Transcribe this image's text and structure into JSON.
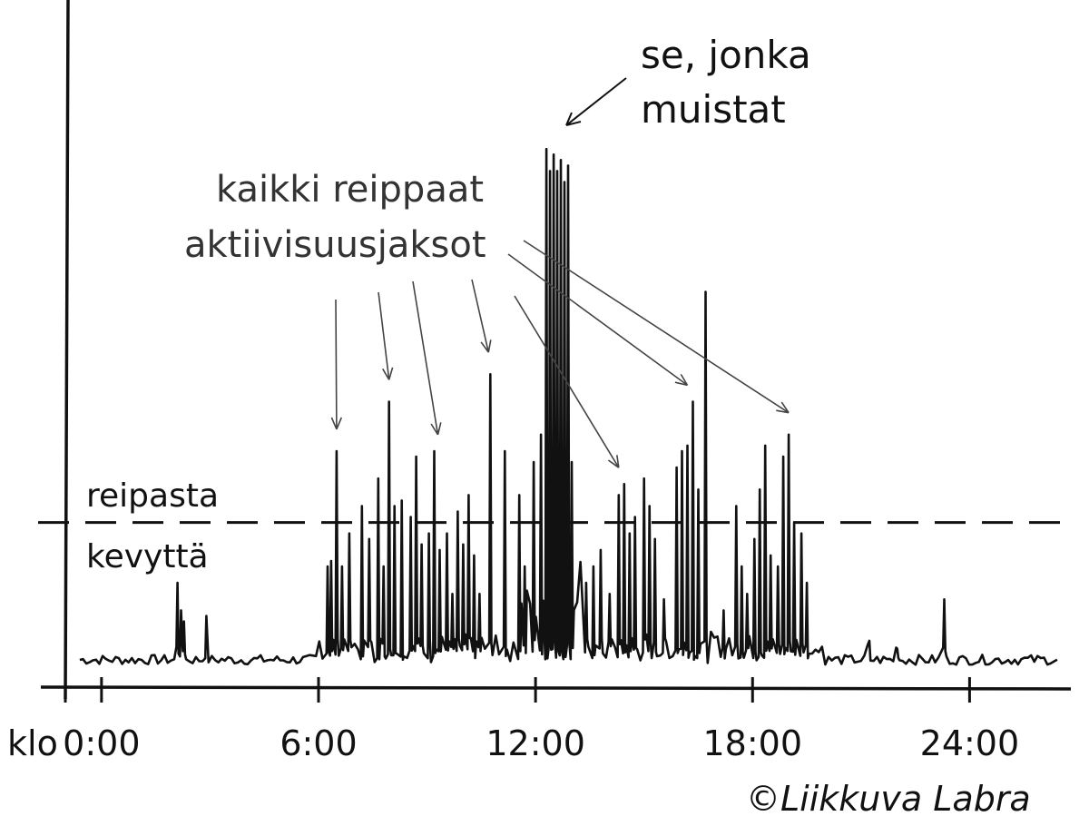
{
  "chart_data": {
    "type": "line",
    "x_unit_label": "klo",
    "x_ticks": [
      {
        "hour": 0,
        "label": "0:00"
      },
      {
        "hour": 6,
        "label": "6:00"
      },
      {
        "hour": 12,
        "label": "12:00"
      },
      {
        "hour": 18,
        "label": "18:00"
      },
      {
        "hour": 24,
        "label": "24:00"
      }
    ],
    "xlim": [
      -1,
      26.8
    ],
    "ylim": [
      0,
      10
    ],
    "threshold": {
      "y": 2.8,
      "label_above": "reipasta",
      "label_below": "kevyttä"
    },
    "series": [
      {
        "values_baseline": 0.3,
        "spikes": [
          {
            "x": 2.1,
            "y": 1.7
          },
          {
            "x": 2.2,
            "y": 1.2
          },
          {
            "x": 2.28,
            "y": 1.0
          },
          {
            "x": 2.9,
            "y": 1.1
          },
          {
            "x": 6.25,
            "y": 2.0
          },
          {
            "x": 6.35,
            "y": 2.1
          },
          {
            "x": 6.5,
            "y": 4.1
          },
          {
            "x": 6.65,
            "y": 2.0
          },
          {
            "x": 6.85,
            "y": 2.6
          },
          {
            "x": 7.2,
            "y": 3.1
          },
          {
            "x": 7.4,
            "y": 2.5
          },
          {
            "x": 7.65,
            "y": 3.6
          },
          {
            "x": 7.8,
            "y": 2.0
          },
          {
            "x": 7.95,
            "y": 5.0
          },
          {
            "x": 8.1,
            "y": 3.1
          },
          {
            "x": 8.3,
            "y": 3.2
          },
          {
            "x": 8.55,
            "y": 2.9
          },
          {
            "x": 8.7,
            "y": 4.0
          },
          {
            "x": 8.85,
            "y": 2.4
          },
          {
            "x": 9.05,
            "y": 2.6
          },
          {
            "x": 9.2,
            "y": 4.1
          },
          {
            "x": 9.35,
            "y": 2.3
          },
          {
            "x": 9.55,
            "y": 2.6
          },
          {
            "x": 9.7,
            "y": 1.5
          },
          {
            "x": 9.85,
            "y": 3.0
          },
          {
            "x": 10.0,
            "y": 2.4
          },
          {
            "x": 10.15,
            "y": 3.3
          },
          {
            "x": 10.3,
            "y": 2.2
          },
          {
            "x": 10.45,
            "y": 1.5
          },
          {
            "x": 10.75,
            "y": 5.5
          },
          {
            "x": 11.15,
            "y": 4.1
          },
          {
            "x": 11.55,
            "y": 3.3
          },
          {
            "x": 11.7,
            "y": 2.0
          },
          {
            "x": 11.95,
            "y": 3.9
          },
          {
            "x": 12.15,
            "y": 4.4
          },
          {
            "x": 12.3,
            "y": 9.6
          },
          {
            "x": 12.4,
            "y": 9.2
          },
          {
            "x": 12.5,
            "y": 9.5
          },
          {
            "x": 12.6,
            "y": 9.2
          },
          {
            "x": 12.7,
            "y": 9.4
          },
          {
            "x": 12.8,
            "y": 9.0
          },
          {
            "x": 12.9,
            "y": 9.3
          },
          {
            "x": 13.0,
            "y": 3.9
          },
          {
            "x": 13.4,
            "y": 1.7
          },
          {
            "x": 13.6,
            "y": 2.0
          },
          {
            "x": 13.8,
            "y": 2.3
          },
          {
            "x": 14.05,
            "y": 1.5
          },
          {
            "x": 14.3,
            "y": 3.3
          },
          {
            "x": 14.45,
            "y": 3.5
          },
          {
            "x": 14.6,
            "y": 2.6
          },
          {
            "x": 14.75,
            "y": 2.9
          },
          {
            "x": 15.0,
            "y": 3.6
          },
          {
            "x": 15.15,
            "y": 3.1
          },
          {
            "x": 15.3,
            "y": 2.5
          },
          {
            "x": 15.55,
            "y": 1.4
          },
          {
            "x": 15.9,
            "y": 3.8
          },
          {
            "x": 16.05,
            "y": 4.1
          },
          {
            "x": 16.2,
            "y": 4.2
          },
          {
            "x": 16.35,
            "y": 5.0
          },
          {
            "x": 16.5,
            "y": 3.4
          },
          {
            "x": 16.7,
            "y": 7.0
          },
          {
            "x": 17.2,
            "y": 1.2
          },
          {
            "x": 17.55,
            "y": 3.1
          },
          {
            "x": 17.7,
            "y": 2.0
          },
          {
            "x": 17.85,
            "y": 1.5
          },
          {
            "x": 18.05,
            "y": 2.5
          },
          {
            "x": 18.2,
            "y": 3.4
          },
          {
            "x": 18.35,
            "y": 4.2
          },
          {
            "x": 18.5,
            "y": 2.2
          },
          {
            "x": 18.7,
            "y": 2.0
          },
          {
            "x": 18.85,
            "y": 4.0
          },
          {
            "x": 19.0,
            "y": 4.4
          },
          {
            "x": 19.15,
            "y": 2.8
          },
          {
            "x": 19.35,
            "y": 2.6
          },
          {
            "x": 19.5,
            "y": 1.7
          },
          {
            "x": 21.2,
            "y": 0.6
          },
          {
            "x": 22.0,
            "y": 0.5
          },
          {
            "x": 23.3,
            "y": 1.4
          }
        ]
      }
    ],
    "annotations": [
      {
        "text_lines": [
          "se, jonka",
          "muistat"
        ]
      },
      {
        "text_lines": [
          "kaikki reippaat",
          "aktiivisuusjaksot"
        ]
      }
    ]
  },
  "credit": "©Liikkuva Labra"
}
